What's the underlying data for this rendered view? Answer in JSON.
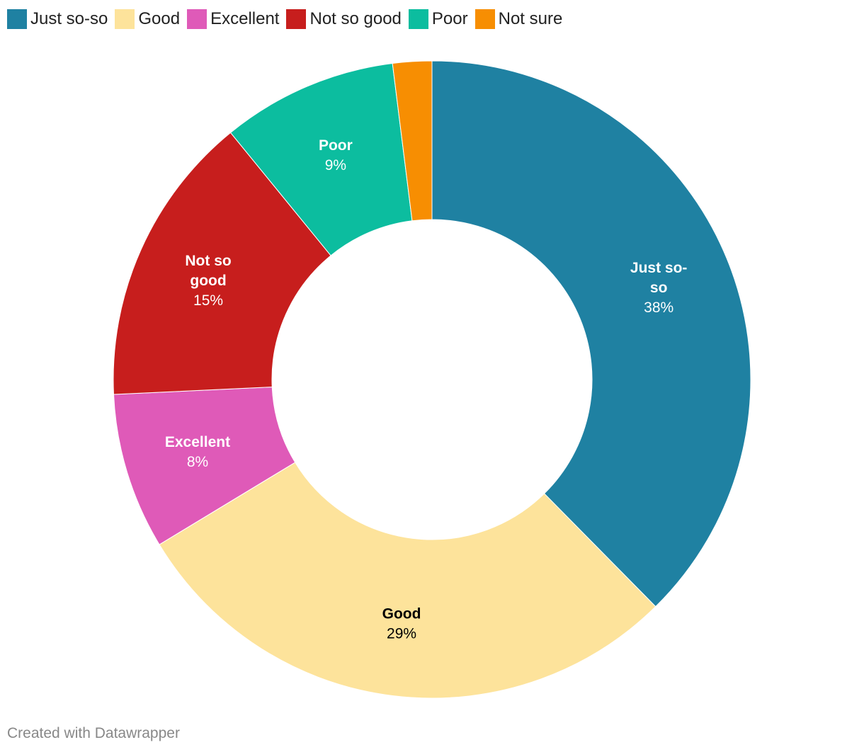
{
  "chart_data": {
    "type": "pie",
    "subtype": "donut",
    "categories": [
      "Just so-so",
      "Good",
      "Excellent",
      "Not so good",
      "Poor",
      "Not sure"
    ],
    "values": [
      38,
      29,
      8,
      15,
      9,
      2
    ],
    "value_labels": [
      "38%",
      "29%",
      "8%",
      "15%",
      "9%",
      ""
    ],
    "slice_labels": [
      "Just so-so",
      "Good",
      "Excellent",
      "Not so good",
      "Poor",
      ""
    ],
    "colors": [
      "#1f81a2",
      "#fde39b",
      "#df5ab8",
      "#c71e1d",
      "#0cbd9f",
      "#f78e02"
    ],
    "label_colors": [
      "#ffffff",
      "#000000",
      "#ffffff",
      "#ffffff",
      "#ffffff",
      "#ffffff"
    ],
    "legend": {
      "placement": "top-left",
      "entries": [
        {
          "label": "Just so-so",
          "color": "#1f81a2"
        },
        {
          "label": "Good",
          "color": "#fde39b"
        },
        {
          "label": "Excellent",
          "color": "#df5ab8"
        },
        {
          "label": "Not so good",
          "color": "#c71e1d"
        },
        {
          "label": "Poor",
          "color": "#0cbd9f"
        },
        {
          "label": "Not sure",
          "color": "#f78e02"
        }
      ]
    }
  },
  "footer": {
    "credit": "Created with Datawrapper"
  }
}
